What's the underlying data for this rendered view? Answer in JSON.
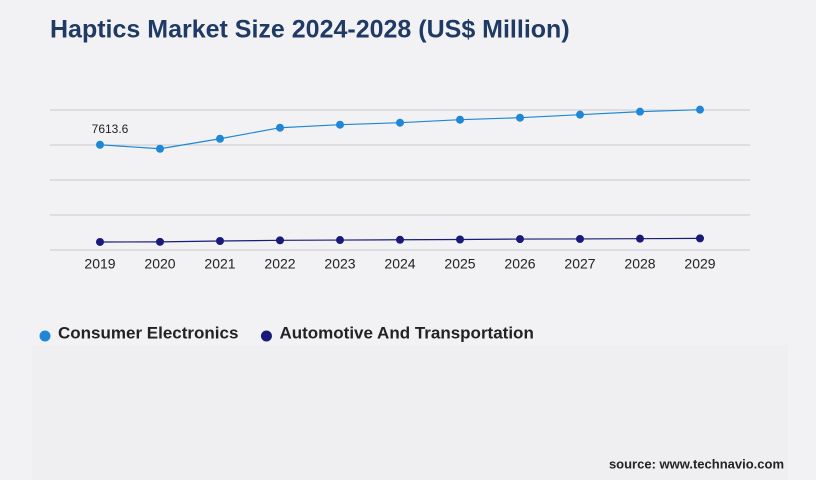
{
  "chart_data": {
    "type": "line",
    "title": "Haptics Market Size 2024-2028 (US$ Million)",
    "categories": [
      "2019",
      "2020",
      "2021",
      "2022",
      "2023",
      "2024",
      "2025",
      "2026",
      "2027",
      "2028",
      "2029"
    ],
    "series": [
      {
        "name": "Consumer Electronics",
        "color": "#1f87d6",
        "values": [
          7613.6,
          7324,
          8049,
          8846,
          9064,
          9209,
          9426,
          9571,
          9789,
          10006,
          10151
        ]
      },
      {
        "name": "Automotive And Transportation",
        "color": "#1b1a78",
        "values": [
          580,
          590,
          650,
          700,
          720,
          740,
          760,
          790,
          800,
          820,
          840
        ]
      }
    ],
    "ylim": [
      0,
      10200
    ],
    "source": "source: www.technavio.com"
  }
}
